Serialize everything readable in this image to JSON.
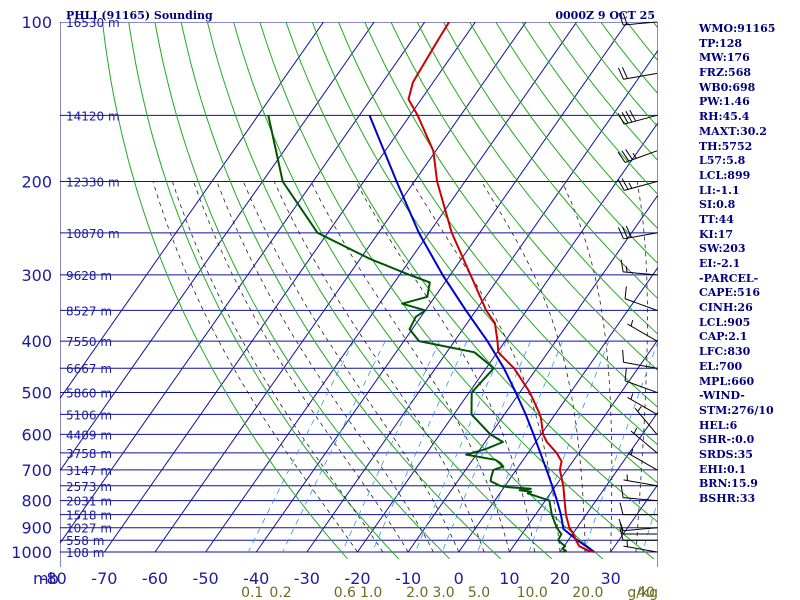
{
  "chart_data": {
    "type": "skew-t sounding",
    "title_left": "PHLI (91165) Sounding",
    "title_right": "0000Z  9 OCT 25",
    "pressure_axis_label": "mb",
    "pressure_levels": [
      100,
      200,
      300,
      400,
      500,
      600,
      700,
      800,
      900,
      1000
    ],
    "pressure_tick_labels": [
      "100",
      "200",
      "300",
      "400",
      "500",
      "600",
      "700",
      "800",
      "900",
      "1000"
    ],
    "height_labels": [
      {
        "p": 100,
        "text": "16530 m"
      },
      {
        "p": 150,
        "text": "14120 m"
      },
      {
        "p": 200,
        "text": "12330 m"
      },
      {
        "p": 250,
        "text": "10870 m"
      },
      {
        "p": 300,
        "text": "9628 m"
      },
      {
        "p": 350,
        "text": "8527 m"
      },
      {
        "p": 400,
        "text": "7550 m"
      },
      {
        "p": 450,
        "text": "6667 m"
      },
      {
        "p": 500,
        "text": "5860 m"
      },
      {
        "p": 550,
        "text": "5106 m"
      },
      {
        "p": 600,
        "text": "4409 m"
      },
      {
        "p": 650,
        "text": "3758 m"
      },
      {
        "p": 700,
        "text": "3147 m"
      },
      {
        "p": 750,
        "text": "2573 m"
      },
      {
        "p": 800,
        "text": "2031 m"
      },
      {
        "p": 850,
        "text": "1518 m"
      },
      {
        "p": 900,
        "text": "1027 m"
      },
      {
        "p": 950,
        "text": "558 m"
      },
      {
        "p": 1000,
        "text": "108 m"
      }
    ],
    "temperature_ticks": [
      -80,
      -70,
      -60,
      -50,
      -40,
      -30,
      -20,
      -10,
      0,
      10,
      20,
      30
    ],
    "temperature_tick_labels": [
      "-80",
      "-70",
      "-60",
      "-50",
      "-40",
      "-30",
      "-20",
      "-10",
      "0",
      "10",
      "20",
      "30"
    ],
    "temperature_axis_range": [
      -80,
      40
    ],
    "isotherm_range": [
      -100,
      40
    ],
    "mixing_ratio_ticks": [
      {
        "w": 0.1,
        "t": -40.8,
        "label": "0.1"
      },
      {
        "w": 0.2,
        "t": -35.2,
        "label": "0.2"
      },
      {
        "w": 0.6,
        "t": -22.5,
        "label": "0.6"
      },
      {
        "w": 1.0,
        "t": -17.3,
        "label": "1.0"
      },
      {
        "w": 2.0,
        "t": -8.2,
        "label": "2.0"
      },
      {
        "w": 3.0,
        "t": -3.0,
        "label": "3.0"
      },
      {
        "w": 5.0,
        "t": 4.0,
        "label": "5.0"
      },
      {
        "w": 10.0,
        "t": 14.5,
        "label": "10.0"
      },
      {
        "w": 20.0,
        "t": 25.5,
        "label": "20.0"
      },
      {
        "w": 40.0,
        "t": 37.0,
        "label": "40"
      }
    ],
    "mixing_ratio_unit": "g/kg",
    "dry_adiabat_thetas_K": [
      250,
      260,
      270,
      280,
      290,
      300,
      310,
      320,
      330,
      340,
      350,
      360,
      370,
      380,
      390,
      400,
      410,
      420,
      430,
      440,
      450,
      460,
      470
    ],
    "moist_adiabat_surface_temps_C": [
      -20,
      -15,
      -10,
      -5,
      0,
      5,
      10,
      15,
      20,
      25,
      30,
      35
    ],
    "temperature_profile": [
      {
        "p": 1000,
        "t": 26.8
      },
      {
        "p": 995,
        "t": 25.5
      },
      {
        "p": 975,
        "t": 23.0
      },
      {
        "p": 950,
        "t": 21.5
      },
      {
        "p": 925,
        "t": 20.2
      },
      {
        "p": 900,
        "t": 18.5
      },
      {
        "p": 850,
        "t": 16.0
      },
      {
        "p": 800,
        "t": 13.8
      },
      {
        "p": 750,
        "t": 11.5
      },
      {
        "p": 700,
        "t": 8.6
      },
      {
        "p": 675,
        "t": 7.8
      },
      {
        "p": 650,
        "t": 5.6
      },
      {
        "p": 620,
        "t": 2.2
      },
      {
        "p": 600,
        "t": 0.4
      },
      {
        "p": 560,
        "t": -2.2
      },
      {
        "p": 550,
        "t": -3.0
      },
      {
        "p": 500,
        "t": -8.0
      },
      {
        "p": 450,
        "t": -14.5
      },
      {
        "p": 420,
        "t": -19.8
      },
      {
        "p": 400,
        "t": -21.5
      },
      {
        "p": 370,
        "t": -24.5
      },
      {
        "p": 350,
        "t": -28.0
      },
      {
        "p": 300,
        "t": -36.0
      },
      {
        "p": 250,
        "t": -45.5
      },
      {
        "p": 200,
        "t": -55.5
      },
      {
        "p": 175,
        "t": -60.5
      },
      {
        "p": 150,
        "t": -68.5
      },
      {
        "p": 140,
        "t": -72.5
      },
      {
        "p": 130,
        "t": -74.0
      },
      {
        "p": 125,
        "t": -74.2
      },
      {
        "p": 110,
        "t": -74.8
      },
      {
        "p": 100,
        "t": -75.2
      }
    ],
    "dewpoint_profile": [
      {
        "p": 1000,
        "t": 20.5
      },
      {
        "p": 995,
        "t": 21.0
      },
      {
        "p": 985,
        "t": 20.0
      },
      {
        "p": 975,
        "t": 20.2
      },
      {
        "p": 950,
        "t": 18.0
      },
      {
        "p": 925,
        "t": 17.8
      },
      {
        "p": 900,
        "t": 16.0
      },
      {
        "p": 850,
        "t": 13.2
      },
      {
        "p": 800,
        "t": 10.8
      },
      {
        "p": 775,
        "t": 5.5
      },
      {
        "p": 770,
        "t": 6.0
      },
      {
        "p": 765,
        "t": 3.5
      },
      {
        "p": 760,
        "t": 5.5
      },
      {
        "p": 755,
        "t": 1.0
      },
      {
        "p": 750,
        "t": -1.0
      },
      {
        "p": 735,
        "t": -3.5
      },
      {
        "p": 720,
        "t": -4.0
      },
      {
        "p": 700,
        "t": -4.5
      },
      {
        "p": 690,
        "t": -3.0
      },
      {
        "p": 680,
        "t": -4.0
      },
      {
        "p": 670,
        "t": -5.5
      },
      {
        "p": 655,
        "t": -12.0
      },
      {
        "p": 640,
        "t": -9.0
      },
      {
        "p": 620,
        "t": -6.5
      },
      {
        "p": 600,
        "t": -10.0
      },
      {
        "p": 550,
        "t": -16.5
      },
      {
        "p": 500,
        "t": -19.5
      },
      {
        "p": 450,
        "t": -18.5
      },
      {
        "p": 420,
        "t": -24.5
      },
      {
        "p": 400,
        "t": -37.0
      },
      {
        "p": 380,
        "t": -40.5
      },
      {
        "p": 360,
        "t": -41.0
      },
      {
        "p": 350,
        "t": -40.0
      },
      {
        "p": 340,
        "t": -45.5
      },
      {
        "p": 330,
        "t": -41.5
      },
      {
        "p": 310,
        "t": -43.0
      },
      {
        "p": 300,
        "t": -48.0
      },
      {
        "p": 280,
        "t": -58.0
      },
      {
        "p": 250,
        "t": -72.0
      },
      {
        "p": 200,
        "t": -86.0
      },
      {
        "p": 150,
        "t": -98.0
      }
    ],
    "parcel_profile": [
      {
        "p": 1000,
        "t": 26.8
      },
      {
        "p": 950,
        "t": 21.8
      },
      {
        "p": 905,
        "t": 17.5
      },
      {
        "p": 850,
        "t": 15.0
      },
      {
        "p": 800,
        "t": 12.3
      },
      {
        "p": 750,
        "t": 9.3
      },
      {
        "p": 700,
        "t": 6.0
      },
      {
        "p": 650,
        "t": 2.4
      },
      {
        "p": 600,
        "t": -1.5
      },
      {
        "p": 550,
        "t": -5.8
      },
      {
        "p": 500,
        "t": -10.8
      },
      {
        "p": 450,
        "t": -16.5
      },
      {
        "p": 400,
        "t": -23.5
      },
      {
        "p": 350,
        "t": -32.0
      },
      {
        "p": 300,
        "t": -41.5
      },
      {
        "p": 250,
        "t": -52.0
      },
      {
        "p": 200,
        "t": -63.5
      },
      {
        "p": 150,
        "t": -78.0
      }
    ],
    "wind_barbs": [
      {
        "p": 1000,
        "dir": 280,
        "spd": 5
      },
      {
        "p": 950,
        "dir": 270,
        "spd": 10
      },
      {
        "p": 925,
        "dir": 270,
        "spd": 10
      },
      {
        "p": 900,
        "dir": 265,
        "spd": 10
      },
      {
        "p": 850,
        "dir": 270,
        "spd": 10
      },
      {
        "p": 800,
        "dir": 275,
        "spd": 10
      },
      {
        "p": 750,
        "dir": 280,
        "spd": 5
      },
      {
        "p": 700,
        "dir": 300,
        "spd": 5
      },
      {
        "p": 650,
        "dir": 310,
        "spd": 5
      },
      {
        "p": 600,
        "dir": 320,
        "spd": 5
      },
      {
        "p": 550,
        "dir": 300,
        "spd": 5
      },
      {
        "p": 500,
        "dir": 290,
        "spd": 10
      },
      {
        "p": 450,
        "dir": 280,
        "spd": 10
      },
      {
        "p": 400,
        "dir": 300,
        "spd": 5
      },
      {
        "p": 350,
        "dir": 290,
        "spd": 10
      },
      {
        "p": 300,
        "dir": 275,
        "spd": 15
      },
      {
        "p": 250,
        "dir": 260,
        "spd": 30
      },
      {
        "p": 200,
        "dir": 255,
        "spd": 25
      },
      {
        "p": 175,
        "dir": 250,
        "spd": 35
      },
      {
        "p": 150,
        "dir": 255,
        "spd": 40
      },
      {
        "p": 125,
        "dir": 260,
        "spd": 20
      },
      {
        "p": 100,
        "dir": 265,
        "spd": 20
      }
    ],
    "colors": {
      "temperature": "#cc0000",
      "dewpoint": "#005500",
      "parcel": "#0000cc",
      "grid": "#1010a0",
      "dry_adiabat": "#22aa22",
      "moist_adiabat": "#222222",
      "mixing_ratio": "#3399dd",
      "mixing_labels": "#6b6b23",
      "text": "#000080"
    }
  },
  "indices": [
    "WMO:91165",
    "TP:128",
    "MW:176",
    "FRZ:568",
    "WB0:698",
    "PW:1.46",
    "RH:45.4",
    "MAXT:30.2",
    "TH:5752",
    "L57:5.8",
    "LCL:899",
    "LI:-1.1",
    "SI:0.8",
    "TT:44",
    "KI:17",
    "SW:203",
    "EI:-2.1",
    "-PARCEL-",
    "CAPE:516",
    "CINH:26",
    "LCL:905",
    "CAP:2.1",
    "LFC:830",
    "EL:700",
    "MPL:660",
    "-WIND-",
    "STM:276/10",
    "HEL:6",
    "SHR-:0.0",
    "SRDS:35",
    "EHI:0.1",
    "BRN:15.9",
    "BSHR:33"
  ]
}
